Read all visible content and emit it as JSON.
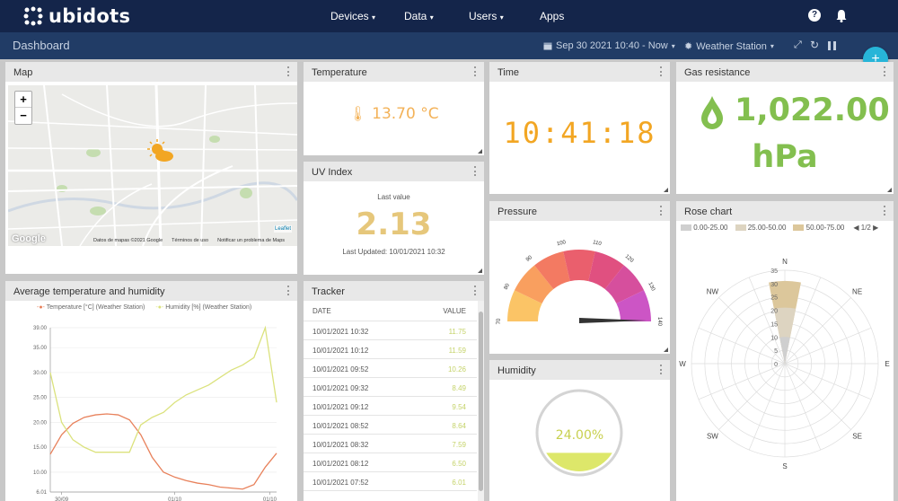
{
  "app": {
    "brand": "ubidots"
  },
  "nav": {
    "devices": "Devices",
    "data": "Data",
    "users": "Users",
    "apps": "Apps"
  },
  "subbar": {
    "title": "Dashboard",
    "date_range": "Sep 30 2021 10:40 - Now",
    "device": "Weather Station"
  },
  "widgets": {
    "map": {
      "title": "Map",
      "zoom_in": "+",
      "zoom_out": "−",
      "attribution_google": "Google",
      "attribution_data": "Datos de mapas ©2021 Google",
      "attribution_terms": "Términos de uso",
      "attribution_report": "Notificar un problema de Maps",
      "leaflet": "Leaflet"
    },
    "temperature": {
      "title": "Temperature",
      "value": "13.70 °C"
    },
    "uv": {
      "title": "UV Index",
      "caption": "Last value",
      "value": "2.13",
      "updated": "Last Updated: 10/01/2021 10:32"
    },
    "time": {
      "title": "Time",
      "value": "10:41:18"
    },
    "gas": {
      "title": "Gas resistance",
      "value": "1,022.00",
      "unit": "hPa"
    },
    "pressure": {
      "title": "Pressure",
      "ticks": [
        "70",
        "80",
        "90",
        "100",
        "110",
        "120",
        "130",
        "140"
      ]
    },
    "humidity": {
      "title": "Humidity",
      "value": "24.00%",
      "level": 0.24
    },
    "rose": {
      "title": "Rose chart",
      "legend": [
        "0.00-25.00",
        "25.00-50.00",
        "50.00-75.00"
      ],
      "pager": "1/2",
      "directions": [
        "N",
        "NE",
        "E",
        "SE",
        "S",
        "SW",
        "W",
        "NW"
      ],
      "rings": [
        "35",
        "30",
        "25",
        "20",
        "15",
        "10",
        "5",
        "0"
      ]
    },
    "avg": {
      "title": "Average temperature and humidity"
    },
    "tracker": {
      "title": "Tracker",
      "col_date": "DATE",
      "col_value": "VALUE",
      "rows": [
        {
          "date": "10/01/2021 10:32",
          "value": "11.75"
        },
        {
          "date": "10/01/2021 10:12",
          "value": "11.59"
        },
        {
          "date": "10/01/2021 09:52",
          "value": "10.26"
        },
        {
          "date": "10/01/2021 09:32",
          "value": "8.49"
        },
        {
          "date": "10/01/2021 09:12",
          "value": "9.54"
        },
        {
          "date": "10/01/2021 08:52",
          "value": "8.64"
        },
        {
          "date": "10/01/2021 08:32",
          "value": "7.59"
        },
        {
          "date": "10/01/2021 08:12",
          "value": "6.50"
        },
        {
          "date": "10/01/2021 07:52",
          "value": "6.01"
        }
      ]
    }
  },
  "chart_data": {
    "type": "line",
    "series": [
      {
        "name": "Temperature [°C] (Weather Station)",
        "color": "#e8815b",
        "x": [
          0,
          0.05,
          0.1,
          0.15,
          0.2,
          0.25,
          0.3,
          0.35,
          0.4,
          0.45,
          0.5,
          0.55,
          0.6,
          0.65,
          0.7,
          0.75,
          0.8,
          0.85,
          0.9,
          0.95,
          1.0
        ],
        "values": [
          13.6,
          17.5,
          19.8,
          21.0,
          21.5,
          21.7,
          21.5,
          20.5,
          17.5,
          13.0,
          10.0,
          9.0,
          8.3,
          7.8,
          7.5,
          7.0,
          6.8,
          6.6,
          7.5,
          11.0,
          13.8
        ]
      },
      {
        "name": "Humidity [%] (Weather Station)",
        "color": "#dbe27d",
        "x": [
          0,
          0.05,
          0.1,
          0.15,
          0.2,
          0.25,
          0.3,
          0.35,
          0.4,
          0.45,
          0.5,
          0.55,
          0.6,
          0.65,
          0.7,
          0.75,
          0.8,
          0.85,
          0.9,
          0.95,
          1.0
        ],
        "values": [
          30.0,
          20.0,
          16.5,
          15.0,
          14.0,
          14.0,
          14.0,
          14.0,
          19.5,
          21.0,
          22.0,
          24.0,
          25.5,
          26.5,
          27.5,
          29.0,
          30.5,
          31.5,
          33.0,
          39.0,
          24.0
        ]
      }
    ],
    "yticks": [
      "39.00",
      "35.00",
      "30.00",
      "25.00",
      "20.00",
      "15.00",
      "10.00",
      "6.01"
    ],
    "xticks": [
      "30/09",
      "01/10",
      "01/10"
    ],
    "ylim": [
      6.01,
      39.0
    ]
  }
}
